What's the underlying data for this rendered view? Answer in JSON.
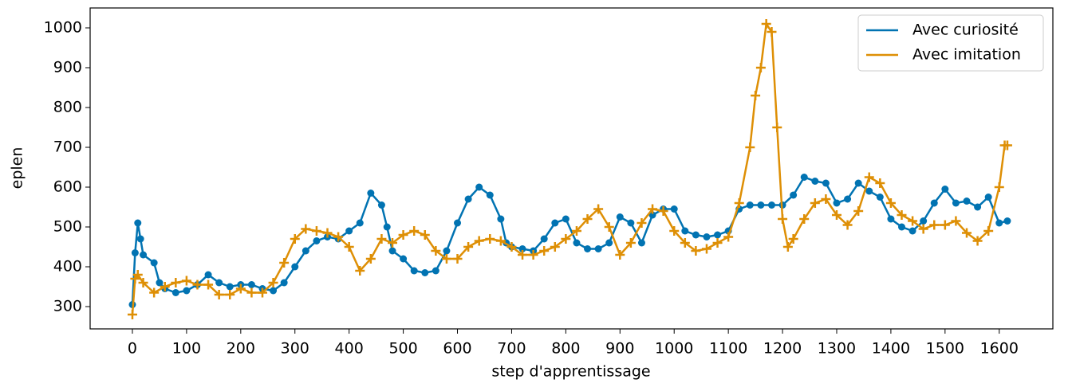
{
  "chart_data": {
    "type": "line",
    "x_label": "step d'apprentissage",
    "y_label": "eplen",
    "xlim": [
      -78,
      1699
    ],
    "ylim": [
      244,
      1050
    ],
    "xticks": [
      0,
      100,
      200,
      300,
      400,
      500,
      600,
      700,
      800,
      900,
      1000,
      1100,
      1200,
      1300,
      1400,
      1500,
      1600
    ],
    "yticks": [
      300,
      400,
      500,
      600,
      700,
      800,
      900,
      1000
    ],
    "legend": "upper right",
    "series": [
      {
        "name": "Avec curiosité",
        "color": "#0173b2",
        "marker": "circle",
        "x": [
          0,
          5,
          10,
          15,
          20,
          40,
          50,
          60,
          80,
          100,
          120,
          140,
          160,
          180,
          200,
          220,
          240,
          260,
          280,
          300,
          320,
          340,
          360,
          380,
          400,
          420,
          440,
          460,
          470,
          480,
          500,
          520,
          540,
          560,
          580,
          600,
          620,
          640,
          660,
          680,
          690,
          700,
          720,
          740,
          760,
          780,
          800,
          820,
          840,
          860,
          880,
          900,
          920,
          940,
          960,
          980,
          1000,
          1020,
          1040,
          1060,
          1080,
          1100,
          1120,
          1140,
          1160,
          1180,
          1200,
          1220,
          1240,
          1260,
          1280,
          1300,
          1320,
          1340,
          1360,
          1380,
          1400,
          1420,
          1440,
          1460,
          1480,
          1500,
          1520,
          1540,
          1560,
          1580,
          1600,
          1615
        ],
        "values": [
          305,
          435,
          510,
          470,
          430,
          410,
          360,
          345,
          335,
          340,
          355,
          380,
          360,
          350,
          355,
          355,
          345,
          340,
          360,
          400,
          440,
          465,
          475,
          470,
          490,
          510,
          585,
          555,
          500,
          440,
          420,
          390,
          385,
          390,
          440,
          510,
          570,
          600,
          580,
          520,
          460,
          450,
          445,
          440,
          470,
          510,
          520,
          460,
          445,
          445,
          460,
          525,
          510,
          460,
          530,
          545,
          545,
          490,
          480,
          475,
          480,
          490,
          545,
          555,
          555,
          555,
          555,
          580,
          625,
          615,
          610,
          560,
          570,
          610,
          590,
          575,
          520,
          500,
          490,
          515,
          560,
          595,
          560,
          565,
          550,
          575,
          510,
          515
        ]
      },
      {
        "name": "Avec imitation",
        "color": "#de8f05",
        "marker": "plus",
        "x": [
          0,
          5,
          10,
          20,
          40,
          60,
          80,
          100,
          120,
          140,
          160,
          180,
          200,
          220,
          240,
          260,
          280,
          300,
          320,
          340,
          360,
          380,
          400,
          420,
          440,
          460,
          480,
          500,
          520,
          540,
          560,
          580,
          600,
          620,
          640,
          660,
          680,
          700,
          720,
          740,
          760,
          780,
          800,
          820,
          840,
          860,
          880,
          900,
          920,
          940,
          960,
          980,
          1000,
          1020,
          1040,
          1060,
          1080,
          1100,
          1120,
          1140,
          1150,
          1160,
          1170,
          1180,
          1190,
          1200,
          1210,
          1220,
          1240,
          1260,
          1280,
          1300,
          1320,
          1340,
          1360,
          1380,
          1400,
          1420,
          1440,
          1460,
          1480,
          1500,
          1520,
          1540,
          1560,
          1580,
          1600,
          1610,
          1615
        ],
        "values": [
          280,
          370,
          380,
          360,
          335,
          350,
          360,
          365,
          355,
          355,
          330,
          330,
          345,
          335,
          335,
          360,
          410,
          470,
          495,
          490,
          485,
          475,
          450,
          390,
          420,
          470,
          460,
          480,
          490,
          480,
          440,
          420,
          420,
          450,
          465,
          470,
          465,
          450,
          430,
          430,
          440,
          450,
          470,
          490,
          520,
          545,
          500,
          430,
          460,
          510,
          545,
          540,
          490,
          460,
          440,
          445,
          460,
          475,
          560,
          700,
          830,
          900,
          1010,
          990,
          750,
          520,
          450,
          470,
          520,
          560,
          570,
          530,
          505,
          540,
          625,
          610,
          560,
          530,
          515,
          495,
          505,
          505,
          515,
          485,
          465,
          490,
          600,
          705,
          705
        ]
      }
    ]
  }
}
